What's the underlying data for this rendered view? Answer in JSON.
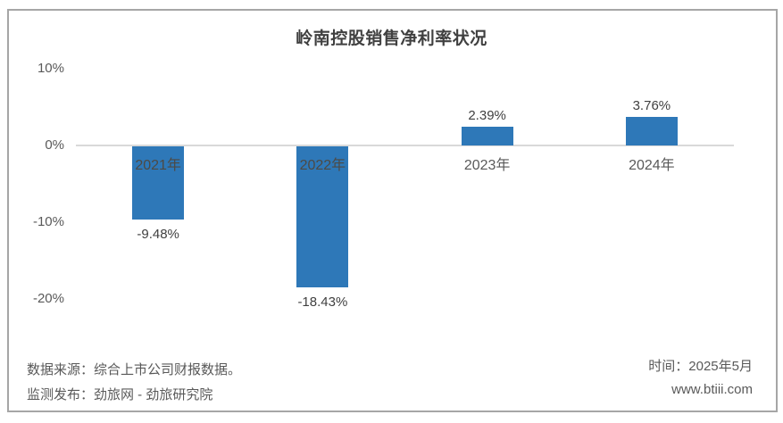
{
  "chart_data": {
    "type": "bar",
    "title": "岭南控股销售净利率状况",
    "categories": [
      "2021年",
      "2022年",
      "2023年",
      "2024年"
    ],
    "values": [
      -9.48,
      -18.43,
      2.39,
      3.76
    ],
    "value_labels": [
      "-9.48%",
      "-18.43%",
      "2.39%",
      "3.76%"
    ],
    "yticks": [
      10,
      0,
      -10,
      -20
    ],
    "ytick_labels": [
      "10%",
      "0%",
      "-10%",
      "-20%"
    ],
    "ylim": [
      -20,
      10
    ],
    "xlabel": "",
    "ylabel": "",
    "grid": "zero-axis-line-only",
    "legend": "none",
    "bar_color": "#2e78b8"
  },
  "footer": {
    "source": "数据来源：综合上市公司财报数据。",
    "publisher": "监测发布：劲旅网 - 劲旅研究院",
    "time": "时间：2025年5月",
    "website": "www.btiii.com"
  },
  "colors": {
    "bar": "#2e78b8",
    "axis_line": "#d9d9d9",
    "frame_border": "#a6a6a6",
    "title_text": "#404040",
    "tick_text": "#595959",
    "value_text": "#404040",
    "footer_text": "#595959"
  }
}
